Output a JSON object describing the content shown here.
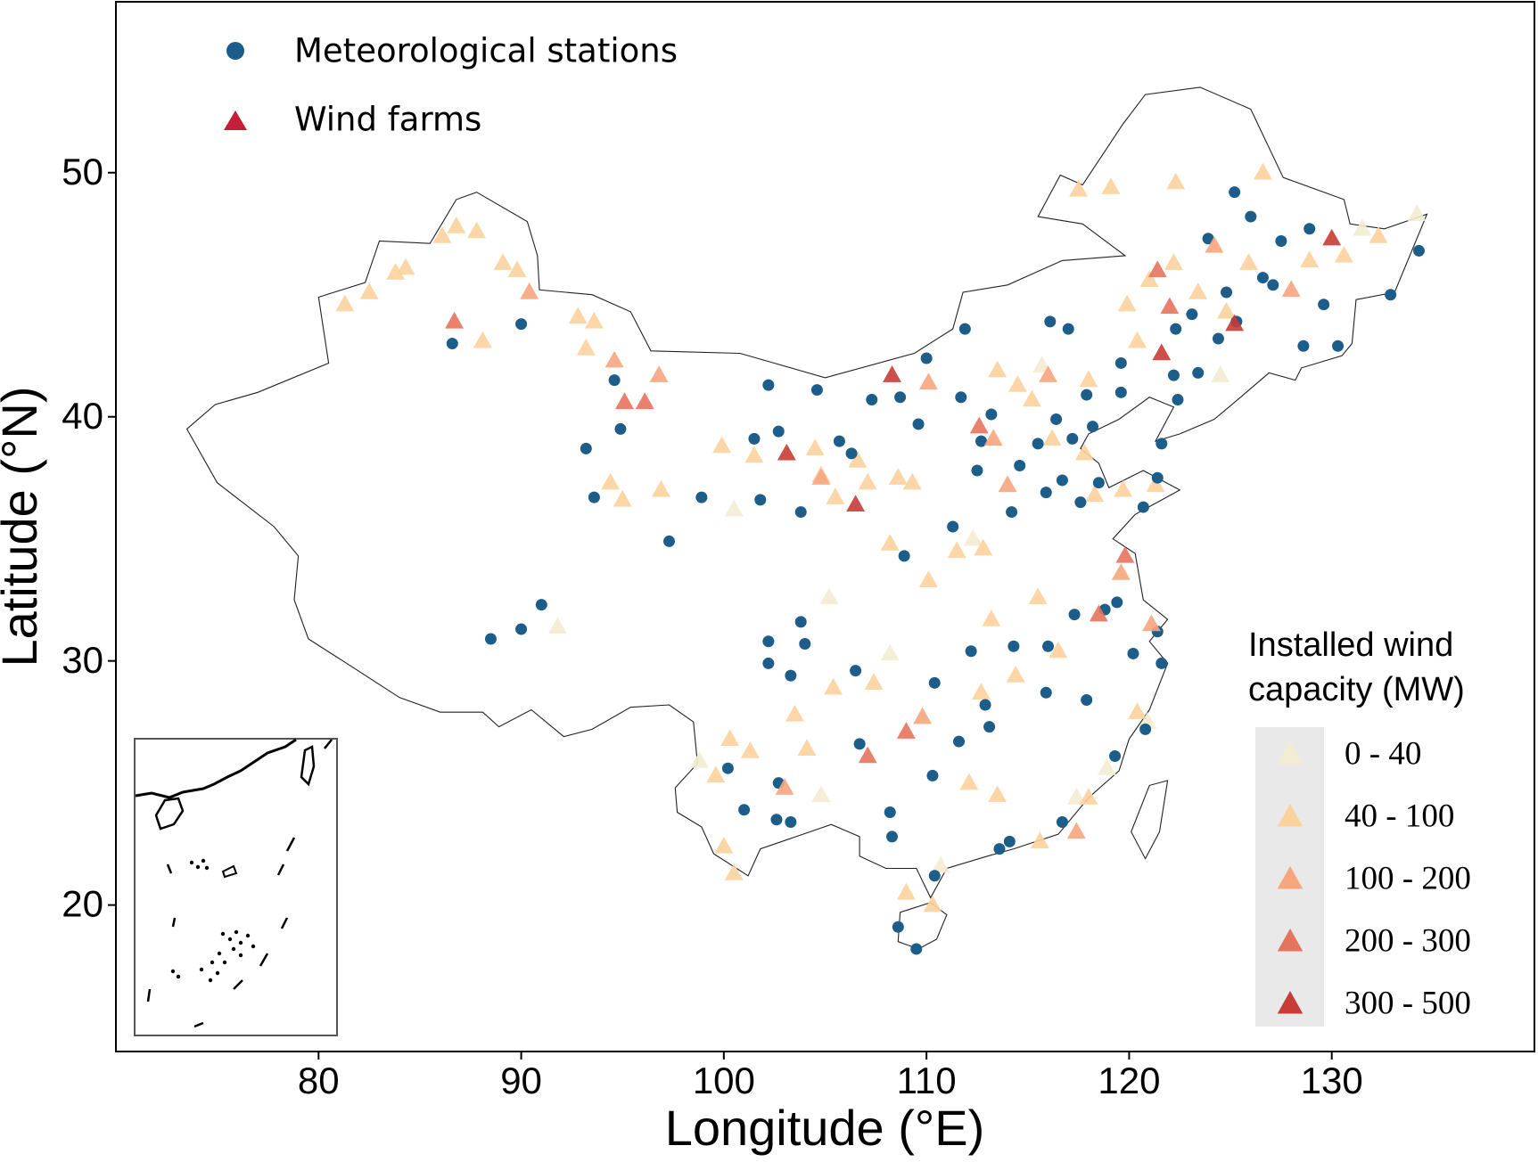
{
  "chart_data": {
    "type": "scatter",
    "xlabel": "Longitude (°E)",
    "ylabel": "Latitude (°N)",
    "xlim": [
      70,
      140
    ],
    "ylim": [
      14,
      57
    ],
    "xticks": [
      80,
      90,
      100,
      110,
      120,
      130
    ],
    "yticks": [
      20,
      30,
      40,
      50
    ],
    "wind_farms_name": "Wind farms",
    "wind_farms_color": "#c41e3a",
    "capacity_legend_title": [
      "Installed wind",
      "capacity (MW)"
    ],
    "series": [
      {
        "name": "Meteorological stations",
        "marker": "circle",
        "color": "#1c5d8a",
        "x": [
          86.6,
          90.0,
          94.6,
          93.2,
          93.6,
          94.9,
          98.9,
          97.3,
          88.5,
          90.0,
          91.0,
          102.2,
          102.2,
          103.8,
          103.3,
          102.2,
          101.5,
          102.7,
          104.6,
          105.7,
          106.3,
          107.3,
          108.7,
          109.6,
          110.0,
          111.7,
          112.7,
          112.5,
          111.3,
          114.2,
          115.9,
          116.7,
          117.6,
          118.5,
          117.2,
          116.4,
          117.9,
          119.6,
          119.6,
          121.6,
          122.4,
          123.4,
          124.4,
          125.3,
          126.6,
          124.8,
          123.9,
          125.2,
          127.5,
          128.9,
          129.6,
          130.3,
          132.9,
          134.3,
          121.4,
          120.2,
          119.4,
          118.8,
          117.3,
          116.0,
          117.9,
          115.9,
          114.3,
          112.9,
          111.6,
          113.1,
          113.6,
          114.1,
          116.7,
          119.3,
          120.8,
          121.6,
          110.3,
          108.3,
          109.5,
          108.6,
          110.4,
          106.7,
          104.0,
          106.5,
          102.7,
          100.2,
          101.0,
          102.6,
          103.3,
          108.9,
          103.8,
          101.8,
          108.2,
          110.4,
          112.2,
          114.6,
          115.5,
          113.2,
          118.2,
          120.7,
          121.4,
          117.0,
          116.1,
          111.9,
          122.3,
          123.1,
          128.6,
          122.2,
          126.0,
          127.1
        ],
        "y": [
          43.0,
          43.8,
          41.5,
          38.7,
          36.7,
          39.5,
          36.7,
          34.9,
          30.9,
          31.3,
          32.3,
          30.8,
          29.9,
          31.6,
          29.4,
          41.3,
          39.1,
          39.4,
          41.1,
          39.0,
          38.5,
          40.7,
          40.8,
          39.7,
          42.4,
          40.8,
          39.0,
          37.8,
          35.5,
          36.1,
          36.9,
          37.4,
          36.5,
          37.3,
          39.1,
          39.9,
          40.9,
          41.0,
          42.2,
          38.9,
          40.7,
          41.8,
          43.2,
          43.9,
          45.7,
          45.1,
          47.3,
          49.2,
          47.2,
          47.7,
          44.6,
          42.9,
          45.0,
          46.8,
          31.2,
          30.3,
          32.4,
          32.1,
          31.9,
          30.6,
          28.4,
          28.7,
          30.6,
          28.2,
          26.7,
          27.3,
          22.3,
          22.6,
          23.4,
          26.1,
          27.2,
          29.9,
          25.3,
          22.8,
          18.2,
          19.1,
          21.2,
          26.6,
          30.7,
          29.6,
          25.0,
          25.6,
          23.9,
          23.5,
          23.4,
          34.3,
          36.1,
          36.6,
          23.8,
          29.1,
          30.4,
          38.0,
          38.9,
          40.1,
          39.6,
          36.3,
          37.5,
          43.6,
          43.9,
          43.6,
          43.6,
          44.2,
          42.9,
          41.7,
          48.2,
          45.4
        ]
      },
      {
        "name": "0 - 40",
        "marker": "triangle",
        "color": "#f3ecd2",
        "x": [
          91.8,
          100.5,
          105.2,
          108.2,
          120.9,
          117.4,
          118.9,
          110.7,
          112.3,
          124.5,
          131.5,
          134.2,
          104.8,
          98.8,
          115.7
        ],
        "y": [
          31.4,
          36.2,
          32.6,
          30.3,
          27.5,
          24.4,
          25.6,
          21.6,
          35.0,
          41.7,
          47.7,
          48.3,
          24.5,
          25.9,
          42.1
        ]
      },
      {
        "name": "40 - 100",
        "marker": "triangle",
        "color": "#fcd29c",
        "x": [
          81.3,
          82.5,
          83.8,
          84.3,
          86.1,
          86.8,
          87.8,
          89.1,
          89.8,
          88.1,
          92.8,
          93.6,
          93.2,
          96.9,
          94.4,
          95.0,
          99.9,
          101.5,
          104.8,
          105.5,
          107.1,
          108.6,
          109.3,
          108.2,
          111.5,
          112.8,
          113.5,
          114.5,
          115.2,
          116.2,
          117.8,
          118.3,
          119.7,
          121.3,
          118.0,
          120.4,
          119.9,
          121.0,
          122.2,
          123.4,
          124.8,
          128.9,
          130.6,
          132.3,
          126.6,
          119.1,
          117.5,
          122.3,
          125.9,
          116.5,
          114.4,
          112.7,
          112.1,
          113.5,
          115.6,
          118.0,
          120.4,
          109.0,
          110.3,
          101.3,
          100.3,
          99.6,
          103.5,
          104.1,
          100.0,
          100.5,
          105.4,
          107.4,
          110.1,
          113.2,
          115.5,
          104.5,
          106.6
        ],
        "y": [
          44.6,
          45.1,
          45.9,
          46.1,
          47.4,
          47.8,
          47.6,
          46.3,
          46.0,
          43.1,
          44.1,
          43.9,
          42.8,
          37.0,
          37.3,
          36.6,
          38.8,
          38.4,
          37.6,
          36.7,
          37.3,
          37.5,
          37.3,
          34.8,
          34.5,
          34.6,
          41.9,
          41.3,
          40.7,
          39.1,
          38.5,
          36.8,
          37.0,
          37.2,
          41.5,
          43.1,
          44.6,
          45.6,
          46.3,
          45.1,
          44.3,
          46.4,
          46.6,
          47.4,
          50.0,
          49.4,
          49.3,
          49.6,
          46.3,
          30.4,
          29.4,
          28.7,
          25.0,
          24.5,
          22.6,
          24.4,
          27.9,
          20.5,
          20.0,
          26.3,
          26.8,
          25.3,
          27.8,
          26.4,
          22.4,
          21.3,
          28.9,
          29.1,
          33.3,
          31.7,
          32.6,
          38.7,
          38.2
        ]
      },
      {
        "name": "100 - 200",
        "marker": "triangle",
        "color": "#f6a67e",
        "x": [
          90.4,
          94.6,
          96.8,
          104.8,
          110.1,
          113.3,
          114.0,
          116.0,
          119.6,
          121.1,
          103.0,
          117.4,
          124.2,
          128.0,
          109.8
        ],
        "y": [
          45.1,
          42.3,
          41.7,
          37.5,
          41.4,
          39.1,
          37.2,
          41.7,
          33.6,
          31.5,
          24.8,
          23.0,
          47.0,
          45.2,
          27.7
        ]
      },
      {
        "name": "200 - 300",
        "marker": "triangle",
        "color": "#e5745c",
        "x": [
          95.1,
          96.1,
          86.7,
          119.8,
          118.5,
          109.0,
          107.1,
          112.6,
          122.0,
          121.4
        ],
        "y": [
          40.6,
          40.6,
          43.9,
          34.3,
          31.9,
          27.1,
          26.1,
          39.6,
          44.5,
          46.0
        ]
      },
      {
        "name": "300 - 500",
        "marker": "triangle",
        "color": "#c63c36",
        "x": [
          103.1,
          106.5,
          130.0,
          125.2,
          121.6,
          108.3
        ],
        "y": [
          38.5,
          36.4,
          47.3,
          43.8,
          42.6,
          41.7
        ]
      }
    ]
  }
}
